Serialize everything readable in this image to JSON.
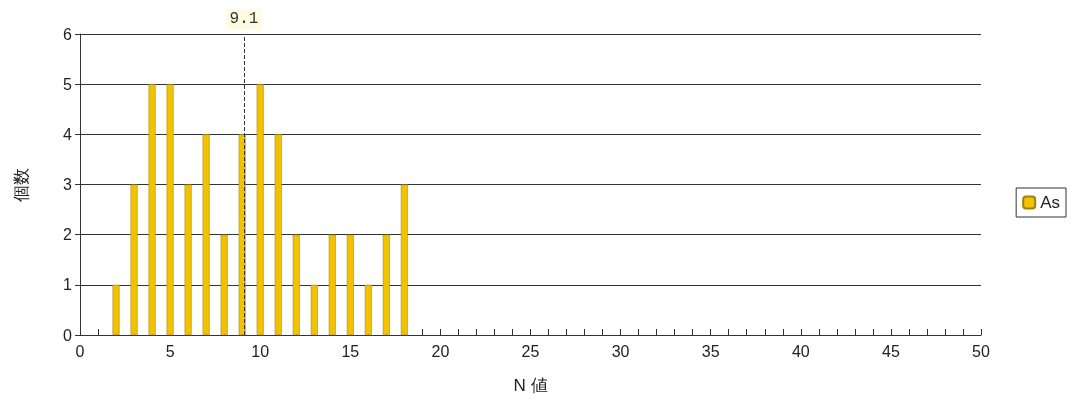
{
  "chart_data": {
    "type": "bar",
    "xlabel": "N 値",
    "ylabel": "個数",
    "x": [
      2,
      3,
      4,
      5,
      6,
      7,
      8,
      9,
      10,
      11,
      12,
      13,
      14,
      15,
      16,
      17,
      18
    ],
    "series": [
      {
        "name": "As",
        "color": "#f2c200",
        "values": [
          1,
          3,
          5,
          5,
          3,
          4,
          2,
          4,
          5,
          4,
          2,
          1,
          2,
          2,
          1,
          2,
          3
        ]
      }
    ],
    "xlim": [
      0,
      50
    ],
    "xticks": [
      0,
      {
        "value": 1,
        "label": null
      },
      {
        "value": 2,
        "label": null
      },
      {
        "value": 3,
        "label": null
      },
      {
        "value": 4,
        "label": null
      },
      5,
      {
        "value": 6,
        "label": null
      },
      {
        "value": 7,
        "label": null
      },
      {
        "value": 8,
        "label": null
      },
      {
        "value": 9,
        "label": null
      },
      10,
      {
        "value": 11,
        "label": null
      },
      {
        "value": 12,
        "label": null
      },
      {
        "value": 13,
        "label": null
      },
      {
        "value": 14,
        "label": null
      },
      15,
      {
        "value": 16,
        "label": null
      },
      {
        "value": 17,
        "label": null
      },
      {
        "value": 18,
        "label": null
      },
      {
        "value": 19,
        "label": null
      },
      20,
      {
        "value": 21,
        "label": null
      },
      {
        "value": 22,
        "label": null
      },
      {
        "value": 23,
        "label": null
      },
      {
        "value": 24,
        "label": null
      },
      25,
      {
        "value": 26,
        "label": null
      },
      {
        "value": 27,
        "label": null
      },
      {
        "value": 28,
        "label": null
      },
      {
        "value": 29,
        "label": null
      },
      30,
      {
        "value": 31,
        "label": null
      },
      {
        "value": 32,
        "label": null
      },
      {
        "value": 33,
        "label": null
      },
      {
        "value": 34,
        "label": null
      },
      35,
      {
        "value": 36,
        "label": null
      },
      {
        "value": 37,
        "label": null
      },
      {
        "value": 38,
        "label": null
      },
      {
        "value": 39,
        "label": null
      },
      40,
      {
        "value": 41,
        "label": null
      },
      {
        "value": 42,
        "label": null
      },
      {
        "value": 43,
        "label": null
      },
      {
        "value": 44,
        "label": null
      },
      45,
      {
        "value": 46,
        "label": null
      },
      {
        "value": 47,
        "label": null
      },
      {
        "value": 48,
        "label": null
      },
      {
        "value": 49,
        "label": null
      },
      50
    ],
    "ylim": [
      0,
      6
    ],
    "yticks": [
      0,
      1,
      2,
      3,
      4,
      5,
      6
    ],
    "ref_lines": [
      {
        "axis": "x",
        "value": 9.1,
        "label": "9.1",
        "color": "#333333",
        "line_style": "dashed"
      }
    ],
    "grid": "y",
    "legend": "right"
  }
}
